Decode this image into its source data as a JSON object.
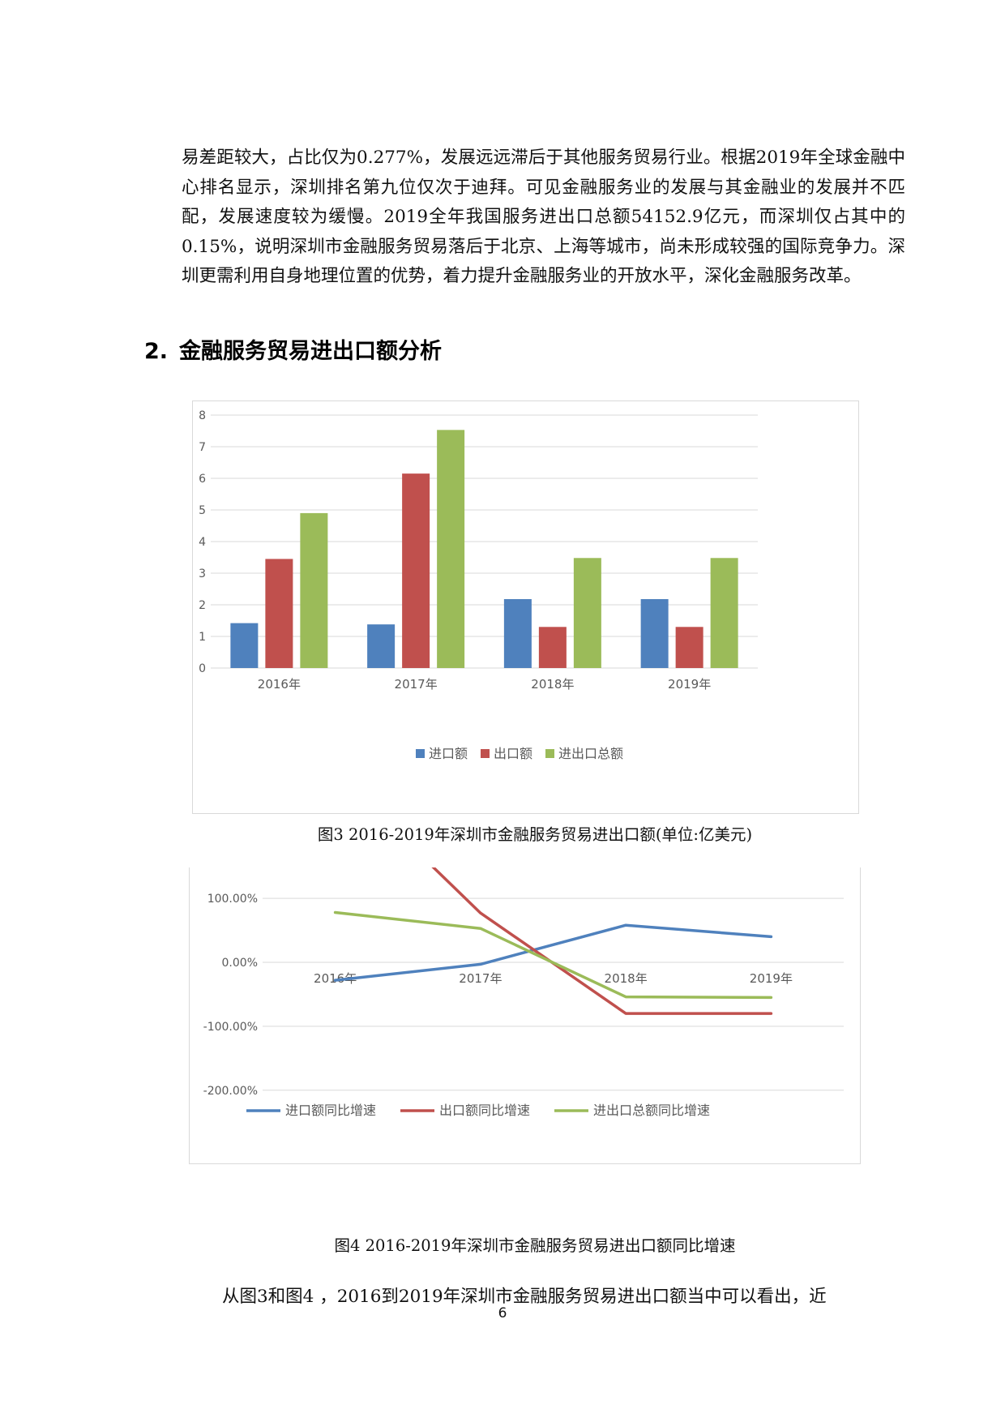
{
  "body": {
    "paragraph_1": "易差距较大，占比仅为0.277%，发展远远滞后于其他服务贸易行业。根据2019年全球金融中心排名显示，深圳排名第九位仅次于迪拜。可见金融服务业的发展与其金融业的发展并不匹配，发展速度较为缓慢。2019全年我国服务进出口总额54152.9亿元，而深圳仅占其中的0.15%，说明深圳市金融服务贸易落后于北京、上海等城市，尚未形成较强的国际竞争力。深圳更需利用自身地理位置的优势，着力提升金融服务业的开放水平，深化金融服务改革。",
    "heading_number": "2.",
    "heading_text": "金融服务贸易进出口额分析",
    "caption_1": "图3 2016-2019年深圳市金融服务贸易进出口额(单位:亿美元)",
    "caption_2": "图4 2016-2019年深圳市金融服务贸易进出口额同比增速",
    "paragraph_2": "从图3和图4 ，2016到2019年深圳市金融服务贸易进出口额当中可以看出，近",
    "page_number": "6"
  },
  "chart_data": [
    {
      "type": "bar",
      "categories": [
        "2016年",
        "2017年",
        "2018年",
        "2019年"
      ],
      "series": [
        {
          "name": "进口额",
          "values": [
            1.42,
            1.38,
            2.18,
            2.18
          ],
          "color": "#4f81bd"
        },
        {
          "name": "出口额",
          "values": [
            3.45,
            6.15,
            1.3,
            1.3
          ],
          "color": "#c0504d"
        },
        {
          "name": "进出口总额",
          "values": [
            4.9,
            7.53,
            3.48,
            3.48
          ],
          "color": "#9bbb59"
        }
      ],
      "ylim": [
        0,
        8
      ],
      "yticks": [
        0,
        1,
        2,
        3,
        4,
        5,
        6,
        7,
        8
      ],
      "ytick_labels": [
        "0",
        "1",
        "2",
        "3",
        "4",
        "5",
        "6",
        "7",
        "8"
      ],
      "grid": true,
      "legend": "bottom"
    },
    {
      "type": "line",
      "categories": [
        "2016年",
        "2017年",
        "2018年",
        "2019年"
      ],
      "series": [
        {
          "name": "进口额同比增速",
          "values": [
            -28,
            -3,
            58,
            40
          ],
          "color": "#4f81bd"
        },
        {
          "name": "出口额同比增速",
          "values": [
            null,
            77,
            -80,
            -80
          ],
          "color": "#c0504d",
          "clipped_start": true
        },
        {
          "name": "进出口总额同比增速",
          "values": [
            78,
            53,
            -54,
            -55
          ],
          "color": "#9bbb59"
        }
      ],
      "ylim": [
        -250,
        150
      ],
      "yticks": [
        -200,
        -100,
        0,
        100
      ],
      "ytick_labels": [
        "-200.00%",
        "-100.00%",
        "0.00%",
        "100.00%"
      ],
      "grid": true,
      "legend": "bottom"
    }
  ]
}
